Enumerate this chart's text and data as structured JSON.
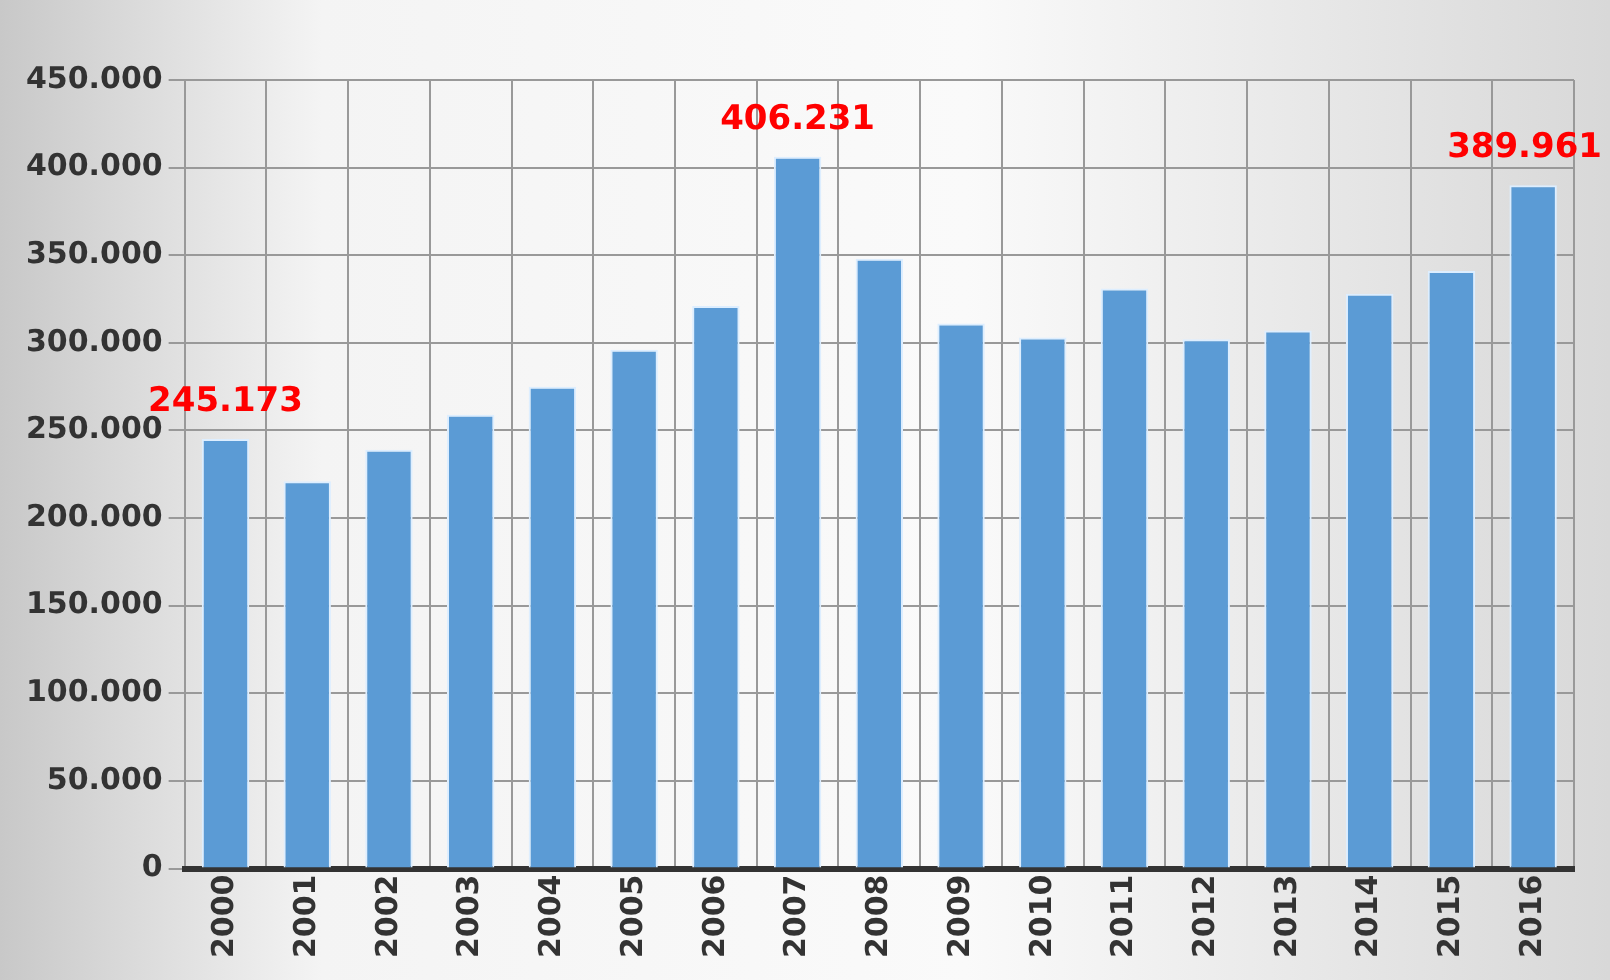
{
  "chart_data": {
    "type": "bar",
    "categories": [
      "2000",
      "2001",
      "2002",
      "2003",
      "2004",
      "2005",
      "2006",
      "2007",
      "2008",
      "2009",
      "2010",
      "2011",
      "2012",
      "2013",
      "2014",
      "2015",
      "2016"
    ],
    "values": [
      245173,
      221000,
      239000,
      259000,
      275000,
      296000,
      321000,
      406231,
      348000,
      311000,
      303000,
      331000,
      302000,
      307000,
      328000,
      341000,
      389961
    ],
    "value_labels": [
      "245.173",
      null,
      null,
      null,
      null,
      null,
      null,
      "406.231",
      null,
      null,
      null,
      null,
      null,
      null,
      null,
      null,
      "389.961"
    ],
    "color": "#5b9bd5",
    "ylim": [
      0,
      450000
    ],
    "yticks": [
      0,
      {
        "value": 50000,
        "label": "50.000"
      },
      {
        "value": 100000,
        "label": "100.000"
      },
      {
        "value": 150000,
        "label": "150.000"
      },
      {
        "value": 200000,
        "label": "200.000"
      },
      {
        "value": 250000,
        "label": "250.000"
      },
      {
        "value": 300000,
        "label": "300.000"
      },
      {
        "value": 350000,
        "label": "350.000"
      },
      {
        "value": 400000,
        "label": "400.000"
      },
      {
        "value": 450000,
        "label": "450.000"
      }
    ],
    "grid": true
  }
}
